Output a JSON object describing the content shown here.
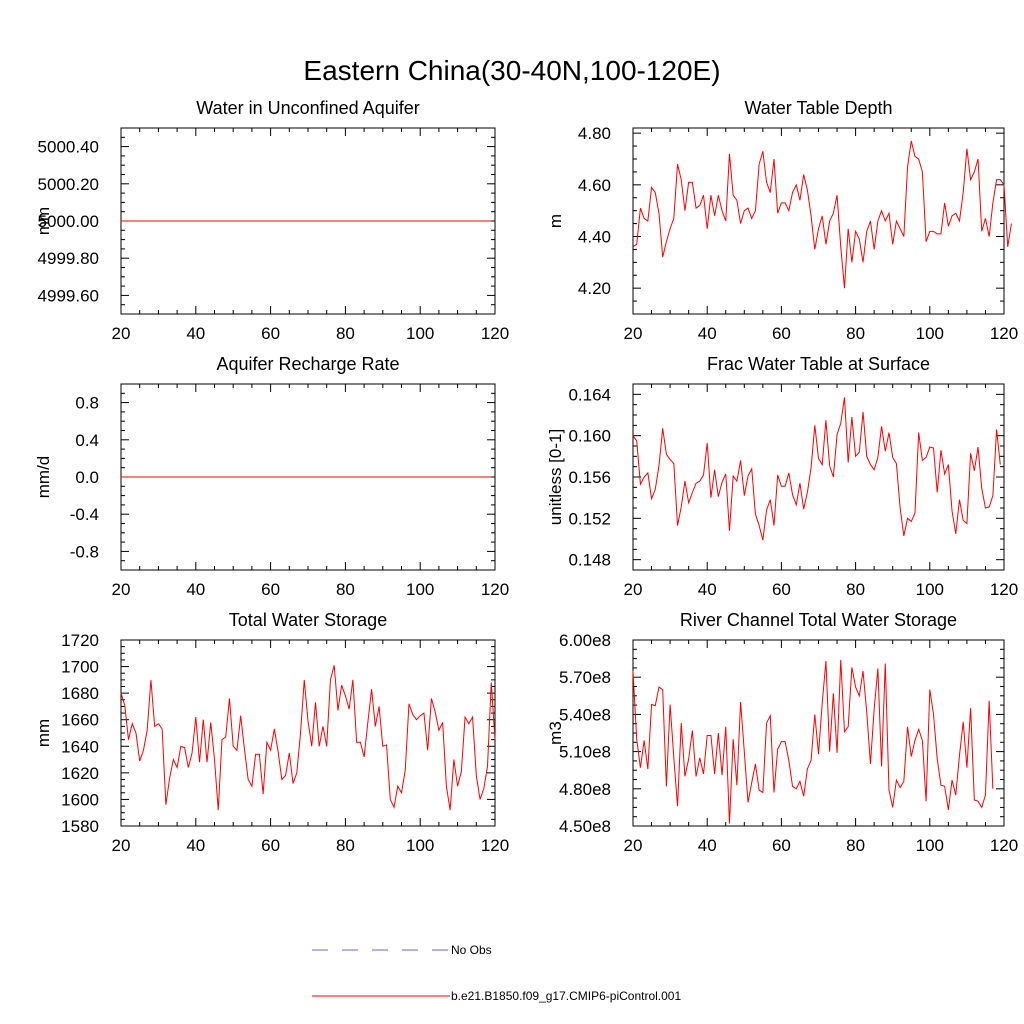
{
  "title": "Eastern China(30-40N,100-120E)",
  "legend": {
    "entries": [
      {
        "label": "No Obs",
        "color": "#6666cc",
        "style": "dashed"
      },
      {
        "label": "b.e21.B1850.f09_g17.CMIP6-piControl.001",
        "color": "#ff0000",
        "style": "solid"
      }
    ]
  },
  "series_color": "#ff0000",
  "chart_data": [
    {
      "type": "line",
      "title": "Water in Unconfined Aquifer",
      "ylabel": "mm",
      "xlim": [
        20,
        120
      ],
      "ylim": [
        4999.5,
        5000.5
      ],
      "xticks": [
        20,
        40,
        60,
        80,
        100,
        120
      ],
      "xtick_labels": [
        "20",
        "40",
        "60",
        "80",
        "100",
        "120"
      ],
      "yticks": [
        4999.6,
        4999.8,
        5000.0,
        5000.2,
        5000.4
      ],
      "ytick_labels": [
        "4999.60",
        "4999.80",
        "5000.00",
        "5000.20",
        "5000.40"
      ],
      "x_start": 20,
      "x_step": 1,
      "values": [
        5000,
        5000,
        5000,
        5000,
        5000,
        5000,
        5000,
        5000,
        5000,
        5000,
        5000,
        5000,
        5000,
        5000,
        5000,
        5000,
        5000,
        5000,
        5000,
        5000,
        5000,
        5000,
        5000,
        5000,
        5000,
        5000,
        5000,
        5000,
        5000,
        5000,
        5000,
        5000,
        5000,
        5000,
        5000,
        5000,
        5000,
        5000,
        5000,
        5000,
        5000,
        5000,
        5000,
        5000,
        5000,
        5000,
        5000,
        5000,
        5000,
        5000,
        5000,
        5000,
        5000,
        5000,
        5000,
        5000,
        5000,
        5000,
        5000,
        5000,
        5000,
        5000,
        5000,
        5000,
        5000,
        5000,
        5000,
        5000,
        5000,
        5000,
        5000,
        5000,
        5000,
        5000,
        5000,
        5000,
        5000,
        5000,
        5000,
        5000,
        5000,
        5000,
        5000,
        5000,
        5000,
        5000,
        5000,
        5000,
        5000,
        5000,
        5000,
        5000,
        5000,
        5000,
        5000,
        5000,
        5000,
        5000,
        5000,
        5000
      ]
    },
    {
      "type": "line",
      "title": "Water Table Depth",
      "ylabel": "m",
      "xlim": [
        20,
        120
      ],
      "ylim": [
        4.1,
        4.82
      ],
      "xticks": [
        20,
        40,
        60,
        80,
        100,
        120
      ],
      "xtick_labels": [
        "20",
        "40",
        "60",
        "80",
        "100",
        "120"
      ],
      "yticks": [
        4.2,
        4.4,
        4.6,
        4.8
      ],
      "ytick_labels": [
        "4.20",
        "4.40",
        "4.60",
        "4.80"
      ],
      "x_start": 20,
      "x_step": 1,
      "values": [
        4.36,
        4.37,
        4.51,
        4.47,
        4.46,
        4.59,
        4.57,
        4.49,
        4.32,
        4.38,
        4.43,
        4.47,
        4.68,
        4.62,
        4.5,
        4.61,
        4.61,
        4.51,
        4.52,
        4.56,
        4.43,
        4.56,
        4.48,
        4.56,
        4.5,
        4.46,
        4.72,
        4.56,
        4.54,
        4.45,
        4.5,
        4.51,
        4.47,
        4.5,
        4.68,
        4.73,
        4.61,
        4.57,
        4.7,
        4.49,
        4.53,
        4.53,
        4.5,
        4.57,
        4.6,
        4.54,
        4.64,
        4.58,
        4.48,
        4.35,
        4.43,
        4.48,
        4.37,
        4.46,
        4.49,
        4.56,
        4.36,
        4.2,
        4.43,
        4.3,
        4.42,
        4.39,
        4.3,
        4.42,
        4.46,
        4.35,
        4.46,
        4.5,
        4.46,
        4.49,
        4.37,
        4.46,
        4.43,
        4.4,
        4.67,
        4.77,
        4.71,
        4.7,
        4.65,
        4.38,
        4.42,
        4.42,
        4.41,
        4.41,
        4.53,
        4.44,
        4.48,
        4.49,
        4.46,
        4.57,
        4.74,
        4.62,
        4.65,
        4.7,
        4.42,
        4.47,
        4.4,
        4.53,
        4.62,
        4.62,
        4.6,
        4.36,
        4.45
      ]
    },
    {
      "type": "line",
      "title": "Aquifer Recharge Rate",
      "ylabel": "mm/d",
      "xlim": [
        20,
        120
      ],
      "ylim": [
        -1.0,
        1.0
      ],
      "xticks": [
        20,
        40,
        60,
        80,
        100,
        120
      ],
      "xtick_labels": [
        "20",
        "40",
        "60",
        "80",
        "100",
        "120"
      ],
      "yticks": [
        -0.8,
        -0.4,
        0.0,
        0.4,
        0.8
      ],
      "ytick_labels": [
        "-0.8",
        "-0.4",
        "0.0",
        "0.4",
        "0.8"
      ],
      "x_start": 20,
      "x_step": 1,
      "values": [
        0,
        0,
        0,
        0,
        0,
        0,
        0,
        0,
        0,
        0,
        0,
        0,
        0,
        0,
        0,
        0,
        0,
        0,
        0,
        0,
        0,
        0,
        0,
        0,
        0,
        0,
        0,
        0,
        0,
        0,
        0,
        0,
        0,
        0,
        0,
        0,
        0,
        0,
        0,
        0,
        0,
        0,
        0,
        0,
        0,
        0,
        0,
        0,
        0,
        0,
        0,
        0,
        0,
        0,
        0,
        0,
        0,
        0,
        0,
        0,
        0,
        0,
        0,
        0,
        0,
        0,
        0,
        0,
        0,
        0,
        0,
        0,
        0,
        0,
        0,
        0,
        0,
        0,
        0,
        0,
        0,
        0,
        0,
        0,
        0,
        0,
        0,
        0,
        0,
        0,
        0,
        0,
        0,
        0,
        0,
        0,
        0,
        0,
        0,
        0
      ]
    },
    {
      "type": "line",
      "title": "Frac Water Table at Surface",
      "ylabel": "unitless [0-1]",
      "xlim": [
        20,
        120
      ],
      "ylim": [
        0.147,
        0.165
      ],
      "xticks": [
        20,
        40,
        60,
        80,
        100,
        120
      ],
      "xtick_labels": [
        "20",
        "40",
        "60",
        "80",
        "100",
        "120"
      ],
      "yticks": [
        0.148,
        0.152,
        0.156,
        0.16,
        0.164
      ],
      "ytick_labels": [
        "0.148",
        "0.152",
        "0.156",
        "0.160",
        "0.164"
      ],
      "x_start": 20,
      "x_step": 1,
      "values": [
        0.16,
        0.1595,
        0.1553,
        0.156,
        0.1564,
        0.1539,
        0.1548,
        0.1571,
        0.1607,
        0.1582,
        0.1577,
        0.1573,
        0.1513,
        0.1531,
        0.1556,
        0.1535,
        0.1545,
        0.1554,
        0.1556,
        0.1562,
        0.1593,
        0.154,
        0.1567,
        0.1541,
        0.1555,
        0.1563,
        0.1508,
        0.1561,
        0.1556,
        0.1576,
        0.1542,
        0.1561,
        0.1568,
        0.1524,
        0.1513,
        0.1499,
        0.1528,
        0.1538,
        0.1513,
        0.1562,
        0.1551,
        0.1551,
        0.1564,
        0.1543,
        0.1533,
        0.1554,
        0.1529,
        0.1545,
        0.1569,
        0.161,
        0.1578,
        0.1572,
        0.1615,
        0.1571,
        0.156,
        0.1601,
        0.1612,
        0.1637,
        0.1574,
        0.1618,
        0.158,
        0.1584,
        0.1623,
        0.158,
        0.1572,
        0.1567,
        0.1579,
        0.1609,
        0.1585,
        0.1603,
        0.1579,
        0.1573,
        0.153,
        0.1503,
        0.152,
        0.1517,
        0.1525,
        0.1603,
        0.1576,
        0.1579,
        0.1589,
        0.1588,
        0.1545,
        0.1586,
        0.1563,
        0.1572,
        0.1527,
        0.1505,
        0.1538,
        0.1518,
        0.1515,
        0.1583,
        0.1566,
        0.1589,
        0.1549,
        0.153,
        0.1531,
        0.1542,
        0.1606,
        0.1572
      ]
    },
    {
      "type": "line",
      "title": "Total Water Storage",
      "ylabel": "mm",
      "xlim": [
        20,
        120
      ],
      "ylim": [
        1580,
        1720
      ],
      "xticks": [
        20,
        40,
        60,
        80,
        100,
        120
      ],
      "xtick_labels": [
        "20",
        "40",
        "60",
        "80",
        "100",
        "120"
      ],
      "yticks": [
        1580,
        1600,
        1620,
        1640,
        1660,
        1680,
        1700,
        1720
      ],
      "ytick_labels": [
        "1580",
        "1600",
        "1620",
        "1640",
        "1660",
        "1680",
        "1700",
        "1720"
      ],
      "x_start": 20,
      "x_step": 1,
      "values": [
        1680,
        1671,
        1645,
        1657,
        1650,
        1629,
        1637,
        1652,
        1690,
        1655,
        1657,
        1653,
        1596,
        1616,
        1630,
        1624,
        1640,
        1639,
        1624,
        1635,
        1662,
        1628,
        1660,
        1628,
        1658,
        1630,
        1592,
        1645,
        1647,
        1676,
        1640,
        1637,
        1663,
        1638,
        1615,
        1610,
        1634,
        1634,
        1604,
        1643,
        1637,
        1653,
        1636,
        1615,
        1618,
        1635,
        1612,
        1620,
        1650,
        1690,
        1659,
        1640,
        1673,
        1640,
        1655,
        1640,
        1690,
        1701,
        1667,
        1686,
        1678,
        1668,
        1690,
        1643,
        1643,
        1632,
        1658,
        1683,
        1655,
        1670,
        1640,
        1641,
        1600,
        1594,
        1610,
        1605,
        1622,
        1672,
        1664,
        1660,
        1663,
        1665,
        1637,
        1676,
        1666,
        1652,
        1658,
        1610,
        1592,
        1630,
        1610,
        1621,
        1662,
        1657,
        1662,
        1618,
        1600,
        1608,
        1625,
        1688,
        1645
      ]
    },
    {
      "type": "line",
      "title": "River Channel Total Water Storage",
      "ylabel": "m3",
      "xlim": [
        20,
        120
      ],
      "ylim": [
        450000000,
        600000000
      ],
      "xticks": [
        20,
        40,
        60,
        80,
        100,
        120
      ],
      "xtick_labels": [
        "20",
        "40",
        "60",
        "80",
        "100",
        "120"
      ],
      "yticks": [
        450000000,
        480000000,
        510000000,
        540000000,
        570000000,
        600000000
      ],
      "ytick_labels": [
        "4.50e8",
        "4.80e8",
        "5.10e8",
        "5.40e8",
        "5.70e8",
        "6.00e8"
      ],
      "x_start": 20,
      "x_step": 1,
      "values": [
        575000000,
        520000000,
        497000000,
        519000000,
        496000000,
        548000000,
        547000000,
        562000000,
        560000000,
        482000000,
        548000000,
        505000000,
        466000000,
        533000000,
        490000000,
        504000000,
        527000000,
        490000000,
        505000000,
        492000000,
        523000000,
        523000000,
        492000000,
        525000000,
        491000000,
        530000000,
        452000000,
        520000000,
        483000000,
        550000000,
        510000000,
        469000000,
        485000000,
        500000000,
        479000000,
        477000000,
        533000000,
        539000000,
        477000000,
        512000000,
        518000000,
        518000000,
        503000000,
        482000000,
        480000000,
        486000000,
        474000000,
        496000000,
        503000000,
        540000000,
        508000000,
        549000000,
        583000000,
        510000000,
        557000000,
        509000000,
        584000000,
        526000000,
        530000000,
        578000000,
        562000000,
        555000000,
        575000000,
        542000000,
        500000000,
        544000000,
        577000000,
        498000000,
        581000000,
        479000000,
        465000000,
        487000000,
        481000000,
        486000000,
        530000000,
        506000000,
        519000000,
        528000000,
        519000000,
        470000000,
        560000000,
        540000000,
        504000000,
        483000000,
        482000000,
        463000000,
        487000000,
        475000000,
        507000000,
        534000000,
        497000000,
        545000000,
        471000000,
        470000000,
        465000000,
        475000000,
        551000000,
        480000000
      ]
    }
  ]
}
